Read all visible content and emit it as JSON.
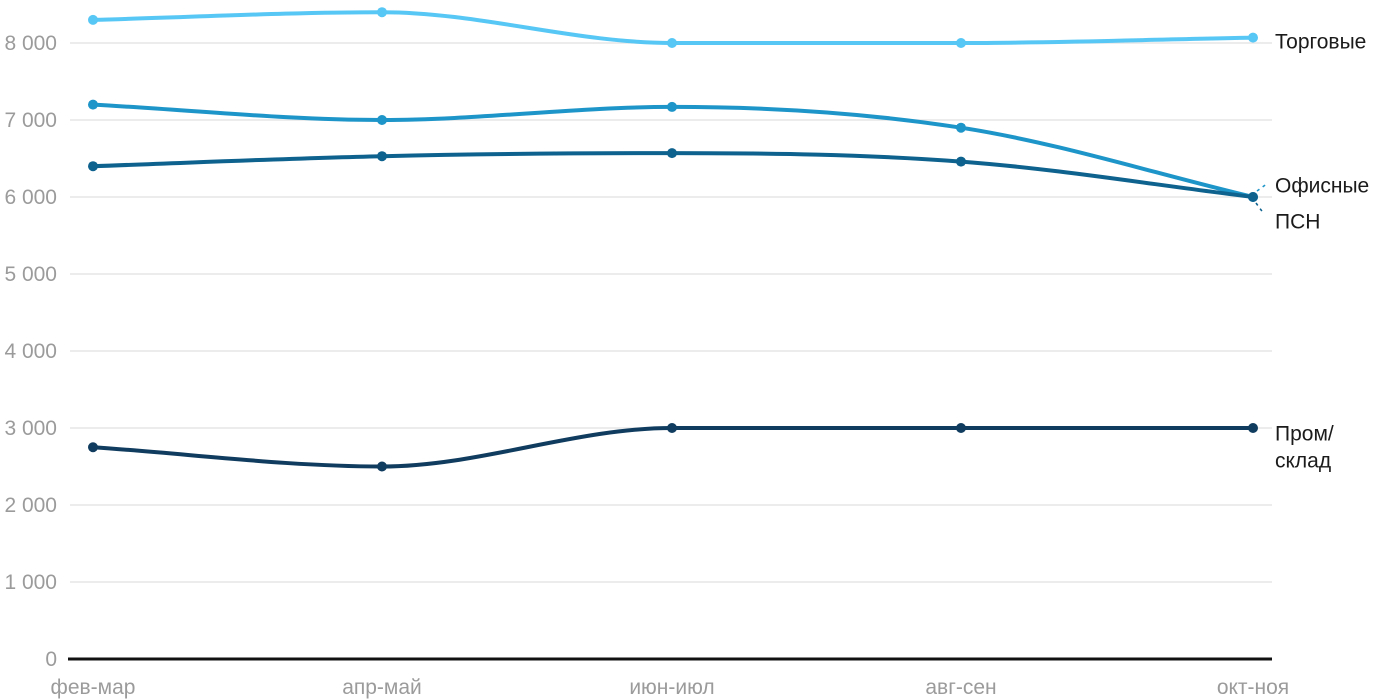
{
  "chart_data": {
    "type": "line",
    "title": "",
    "xlabel": "",
    "ylabel": "",
    "categories": [
      "фев-мар",
      "апр-май",
      "июн-июл",
      "авг-сен",
      "окт-ноя"
    ],
    "series": [
      {
        "name": "Торговые",
        "color": "#57C7F5",
        "values": [
          8300,
          8400,
          8000,
          8000,
          8070
        ],
        "label_lines": [
          "Торговые"
        ]
      },
      {
        "name": "Офисные",
        "color": "#1E95C8",
        "values": [
          7200,
          7000,
          7170,
          6900,
          6000
        ],
        "label_lines": [
          "Офисные"
        ]
      },
      {
        "name": "ПСН",
        "color": "#0E628E",
        "values": [
          6400,
          6530,
          6570,
          6460,
          6000
        ],
        "label_lines": [
          "ПСН"
        ]
      },
      {
        "name": "Пром/склад",
        "color": "#103C5F",
        "values": [
          2750,
          2500,
          3000,
          3000,
          3000
        ],
        "label_lines": [
          "Пром/",
          "склад"
        ]
      }
    ],
    "y_ticks": [
      0,
      1000,
      2000,
      3000,
      4000,
      5000,
      6000,
      7000,
      8000
    ],
    "y_tick_labels": [
      "0",
      "1 000",
      "2 000",
      "3 000",
      "4 000",
      "5 000",
      "6 000",
      "7 000",
      "8 000"
    ],
    "ylim": [
      0,
      8560
    ],
    "grid": true,
    "legend_position": "labels-at-line-ends-right",
    "line_style": "smooth-spline-with-point-markers",
    "colors": {
      "grid_line": "#e6e6e6",
      "axis_line": "#111111",
      "tick_text": "#9b9b9b",
      "label_text": "#1b1b1b",
      "background": "#ffffff"
    }
  }
}
